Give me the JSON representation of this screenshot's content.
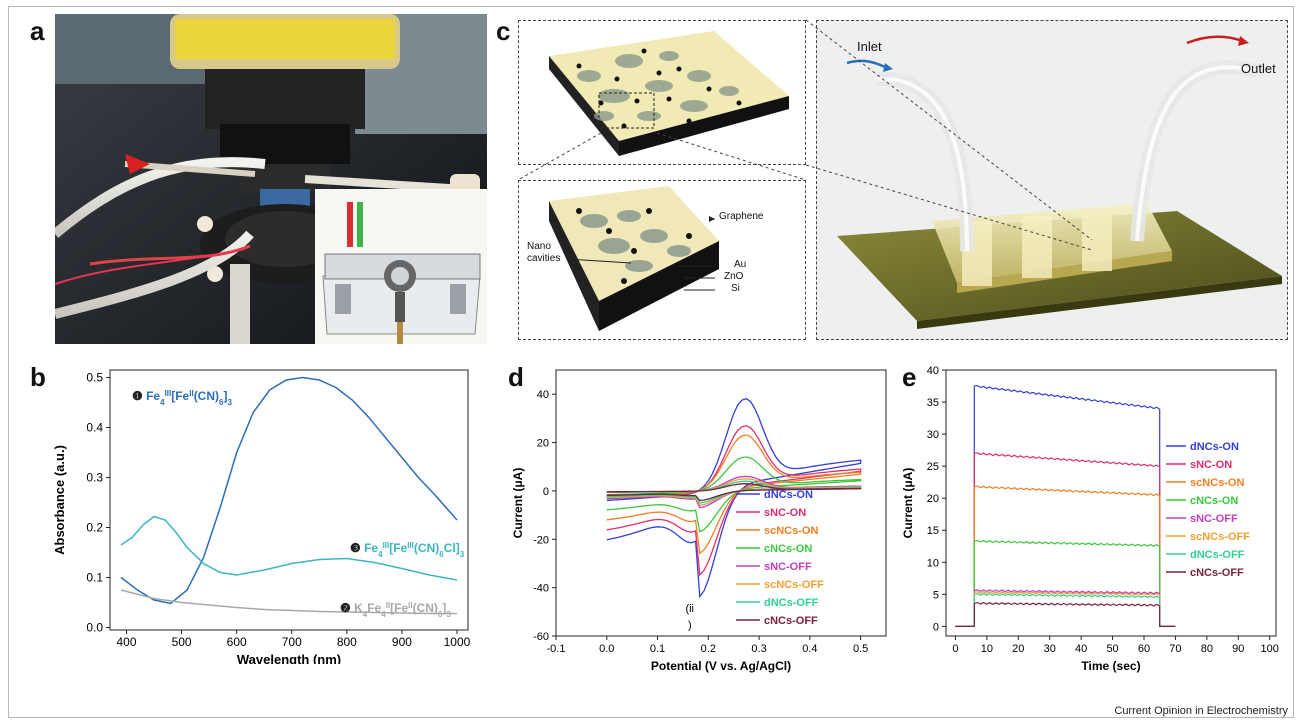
{
  "figure": {
    "source_credit": "Current Opinion in Electrochemistry",
    "panels": {
      "a": {
        "letter": "a"
      },
      "b": {
        "letter": "b"
      },
      "c": {
        "letter": "c",
        "labels": {
          "graphene": "Graphene",
          "nano": "Nano",
          "cavities": "cavities",
          "au": "Au",
          "zno": "ZnO",
          "si": "Si",
          "inlet": "Inlet",
          "outlet": "Outlet"
        }
      },
      "d": {
        "letter": "d"
      },
      "e": {
        "letter": "e"
      }
    }
  },
  "colors": {
    "blue": "#2a6fb6",
    "teal": "#3bb6c0",
    "gray": "#a8a8a8",
    "dNCs_ON": "#3340d8",
    "sNC_ON": "#e0306a",
    "scNCs_ON": "#f07f22",
    "cNCs_ON": "#3cc83c",
    "sNC_OFF": "#c040c0",
    "scNCs_OFF": "#f0a030",
    "dNCs_OFF": "#30d090",
    "cNCs_OFF": "#7a2040"
  },
  "chart_data": [
    {
      "id": "b",
      "type": "line",
      "xlabel": "Wavelength (nm)",
      "ylabel": "Absorbance (a.u.)",
      "xlim": [
        370,
        1020
      ],
      "ylim": [
        -0.005,
        0.515
      ],
      "xticks": [
        400,
        500,
        600,
        700,
        800,
        900,
        1000
      ],
      "yticks": [
        0.0,
        0.1,
        0.2,
        0.3,
        0.4,
        0.5
      ],
      "xtick_labels": [
        "400",
        "500",
        "600",
        "700",
        "800",
        "900",
        "1000"
      ],
      "ytick_labels": [
        "0.0",
        "0.1",
        "0.2",
        "0.3",
        "0.4",
        "0.5"
      ],
      "series": [
        {
          "name": "Fe4III[FeII(CN)6]3",
          "color": "#2a6fb6",
          "x": [
            390,
            420,
            450,
            480,
            510,
            540,
            570,
            600,
            630,
            660,
            690,
            720,
            750,
            780,
            810,
            840,
            870,
            900,
            930,
            960,
            1000
          ],
          "y": [
            0.1,
            0.075,
            0.055,
            0.048,
            0.075,
            0.14,
            0.24,
            0.35,
            0.43,
            0.475,
            0.495,
            0.5,
            0.495,
            0.48,
            0.455,
            0.42,
            0.38,
            0.34,
            0.3,
            0.265,
            0.215
          ]
        },
        {
          "name": "Fe4III[FeIII(CN)6Cl]3",
          "color": "#3bb6c0",
          "x": [
            390,
            410,
            430,
            450,
            470,
            490,
            510,
            540,
            570,
            600,
            650,
            700,
            750,
            800,
            850,
            900,
            950,
            1000
          ],
          "y": [
            0.165,
            0.18,
            0.205,
            0.222,
            0.215,
            0.19,
            0.16,
            0.128,
            0.11,
            0.105,
            0.115,
            0.128,
            0.136,
            0.138,
            0.13,
            0.118,
            0.105,
            0.095
          ]
        },
        {
          "name": "K4Fe4II[FeII(CN)6]3",
          "color": "#a8a8a8",
          "x": [
            390,
            450,
            500,
            550,
            600,
            650,
            700,
            750,
            800,
            850,
            900,
            950,
            1000
          ],
          "y": [
            0.075,
            0.058,
            0.05,
            0.045,
            0.04,
            0.036,
            0.034,
            0.032,
            0.031,
            0.03,
            0.029,
            0.028,
            0.028
          ]
        }
      ],
      "labels": [
        {
          "num": "❶",
          "base": "Fe",
          "sub1": "4",
          "sup1": "III",
          "mid": "[Fe",
          "sup2": "II",
          "tail": "(CN)",
          "sub2": "6",
          "end": "]",
          "sub3": "3",
          "color": "#2a6fb6"
        },
        {
          "num": "❸",
          "base": "Fe",
          "sub1": "4",
          "sup1": "III",
          "mid": "[Fe",
          "sup2": "III",
          "tail": "(CN)",
          "sub2": "6",
          "end": "Cl]",
          "sub3": "3",
          "color": "#3bb6c0"
        },
        {
          "num": "❷",
          "base": "K",
          "sub1": "4",
          "mid0": "Fe",
          "sub1b": "4",
          "sup1": "II",
          "mid": "[Fe",
          "sup2": "II",
          "tail": "(CN)",
          "sub2": "6",
          "end": "]",
          "sub3": "3",
          "color": "#a8a8a8"
        }
      ]
    },
    {
      "id": "d",
      "type": "line",
      "xlabel": "Potential (V vs. Ag/AgCl)",
      "ylabel": "Current (μA)",
      "xlim": [
        -0.1,
        0.55
      ],
      "ylim": [
        -60,
        50
      ],
      "xticks": [
        -0.1,
        0.0,
        0.1,
        0.2,
        0.3,
        0.4,
        0.5
      ],
      "yticks": [
        -60,
        -40,
        -20,
        0,
        20,
        40
      ],
      "xtick_labels": [
        "-0.1",
        "0.0",
        "0.1",
        "0.2",
        "0.3",
        "0.4",
        "0.5"
      ],
      "ytick_labels": [
        "-60",
        "-40",
        "-20",
        "0",
        "20",
        "40"
      ],
      "annotation": "(ii",
      "annotation2": ")",
      "series": [
        {
          "name": "dNCs-ON",
          "color": "#3340d8",
          "ipa": 38,
          "ipc": -44
        },
        {
          "name": "sNC-ON",
          "color": "#e0306a",
          "ipa": 27,
          "ipc": -35
        },
        {
          "name": "scNCs-ON",
          "color": "#f07f22",
          "ipa": 23,
          "ipc": -26
        },
        {
          "name": "cNCs-ON",
          "color": "#3cc83c",
          "ipa": 14,
          "ipc": -17
        },
        {
          "name": "sNC-OFF",
          "color": "#c040c0",
          "ipa": 6,
          "ipc": -7
        },
        {
          "name": "scNCs-OFF",
          "color": "#f0a030",
          "ipa": 5,
          "ipc": -6
        },
        {
          "name": "dNCs-OFF",
          "color": "#30d090",
          "ipa": 4,
          "ipc": -5
        },
        {
          "name": "cNCs-OFF",
          "color": "#7a2040",
          "ipa": 3,
          "ipc": -4
        }
      ]
    },
    {
      "id": "e",
      "type": "line",
      "xlabel": "Time (sec)",
      "ylabel": "Current (μA)",
      "xlim": [
        -3,
        102
      ],
      "ylim": [
        -1.5,
        40
      ],
      "xticks": [
        0,
        10,
        20,
        30,
        40,
        50,
        60,
        70,
        80,
        90,
        100
      ],
      "yticks": [
        0,
        5,
        10,
        15,
        20,
        25,
        30,
        35,
        40
      ],
      "xtick_labels": [
        "0",
        "10",
        "20",
        "30",
        "40",
        "50",
        "60",
        "70",
        "80",
        "90",
        "100"
      ],
      "ytick_labels": [
        "0",
        "5",
        "10",
        "15",
        "20",
        "25",
        "30",
        "35",
        "40"
      ],
      "on_time": 6,
      "off_time": 65,
      "series": [
        {
          "name": "dNCs-ON",
          "color": "#3340d8",
          "start": 37.5,
          "end": 34.0
        },
        {
          "name": "sNC-ON",
          "color": "#e0306a",
          "start": 27.0,
          "end": 25.0
        },
        {
          "name": "scNCs-ON",
          "color": "#f07f22",
          "start": 21.8,
          "end": 20.5
        },
        {
          "name": "cNCs-ON",
          "color": "#3cc83c",
          "start": 13.3,
          "end": 12.6
        },
        {
          "name": "sNC-OFF",
          "color": "#c040c0",
          "start": 5.6,
          "end": 5.2
        },
        {
          "name": "scNCs-OFF",
          "color": "#f0a030",
          "start": 5.3,
          "end": 5.0
        },
        {
          "name": "dNCs-OFF",
          "color": "#30d090",
          "start": 5.0,
          "end": 4.6
        },
        {
          "name": "cNCs-OFF",
          "color": "#7a2040",
          "start": 3.6,
          "end": 3.3
        }
      ]
    }
  ]
}
